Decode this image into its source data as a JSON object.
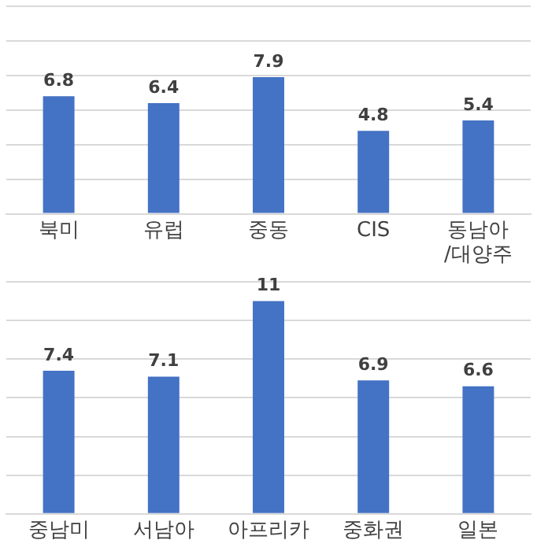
{
  "chart_data": [
    {
      "type": "bar",
      "categories": [
        "북미",
        "유럽",
        "중동",
        "CIS",
        "동남아/대양주"
      ],
      "values": [
        6.8,
        6.4,
        7.9,
        4.8,
        5.4
      ],
      "color": "#4472c4",
      "ylim": [
        0,
        12
      ],
      "yticks": [
        {
          "value": 0,
          "label": null
        },
        {
          "value": 2,
          "label": null
        },
        {
          "value": 4,
          "label": null
        },
        {
          "value": 6,
          "label": null
        },
        {
          "value": 8,
          "label": null
        },
        {
          "value": 10,
          "label": null
        },
        {
          "value": 12,
          "label": null
        }
      ],
      "grid": "y",
      "tick_labels": "x",
      "data_labels": true
    },
    {
      "type": "bar",
      "categories": [
        "중남미",
        "서남아",
        "아프리카",
        "중화권",
        "일본"
      ],
      "values": [
        7.4,
        7.1,
        11,
        6.9,
        6.6
      ],
      "color": "#4472c4",
      "ylim": [
        0,
        12
      ],
      "yticks": [
        {
          "value": 0,
          "label": null
        },
        {
          "value": 2,
          "label": null
        },
        {
          "value": 4,
          "label": null
        },
        {
          "value": 6,
          "label": null
        },
        {
          "value": 8,
          "label": null
        },
        {
          "value": 10,
          "label": null
        },
        {
          "value": 12,
          "label": null
        }
      ],
      "grid": "y",
      "tick_labels": "x",
      "data_labels": true
    }
  ]
}
